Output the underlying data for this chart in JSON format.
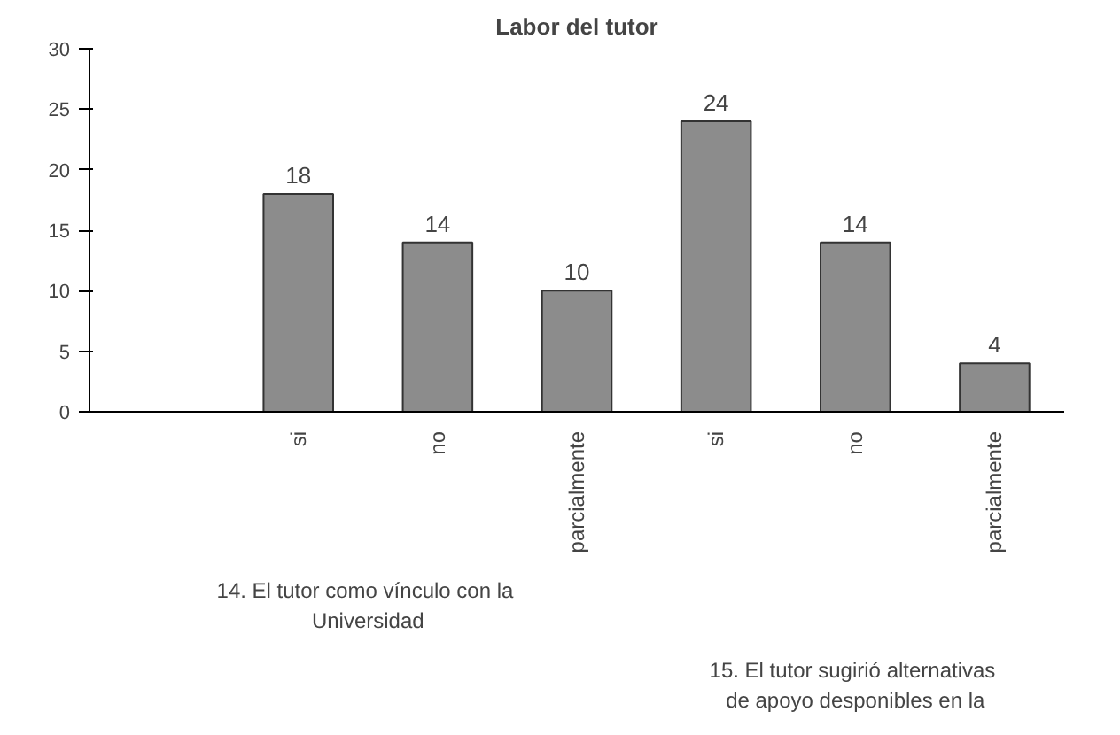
{
  "chart_data": {
    "type": "bar",
    "title": "Labor del tutor",
    "categories": [
      "si",
      "no",
      "parcialmente",
      "si",
      "no",
      "parcialmente"
    ],
    "values": [
      18,
      14,
      10,
      24,
      14,
      4
    ],
    "color": "#8c8c8c",
    "ylim": [
      0,
      30
    ],
    "yticks": [
      0,
      5,
      10,
      15,
      20,
      25,
      30
    ],
    "data_labels": true,
    "grid": false,
    "annotations": [
      "14.  El tutor como vínculo con la Universidad",
      "15.  El tutor sugirió alternativas de apoyo desponibles en la"
    ]
  }
}
